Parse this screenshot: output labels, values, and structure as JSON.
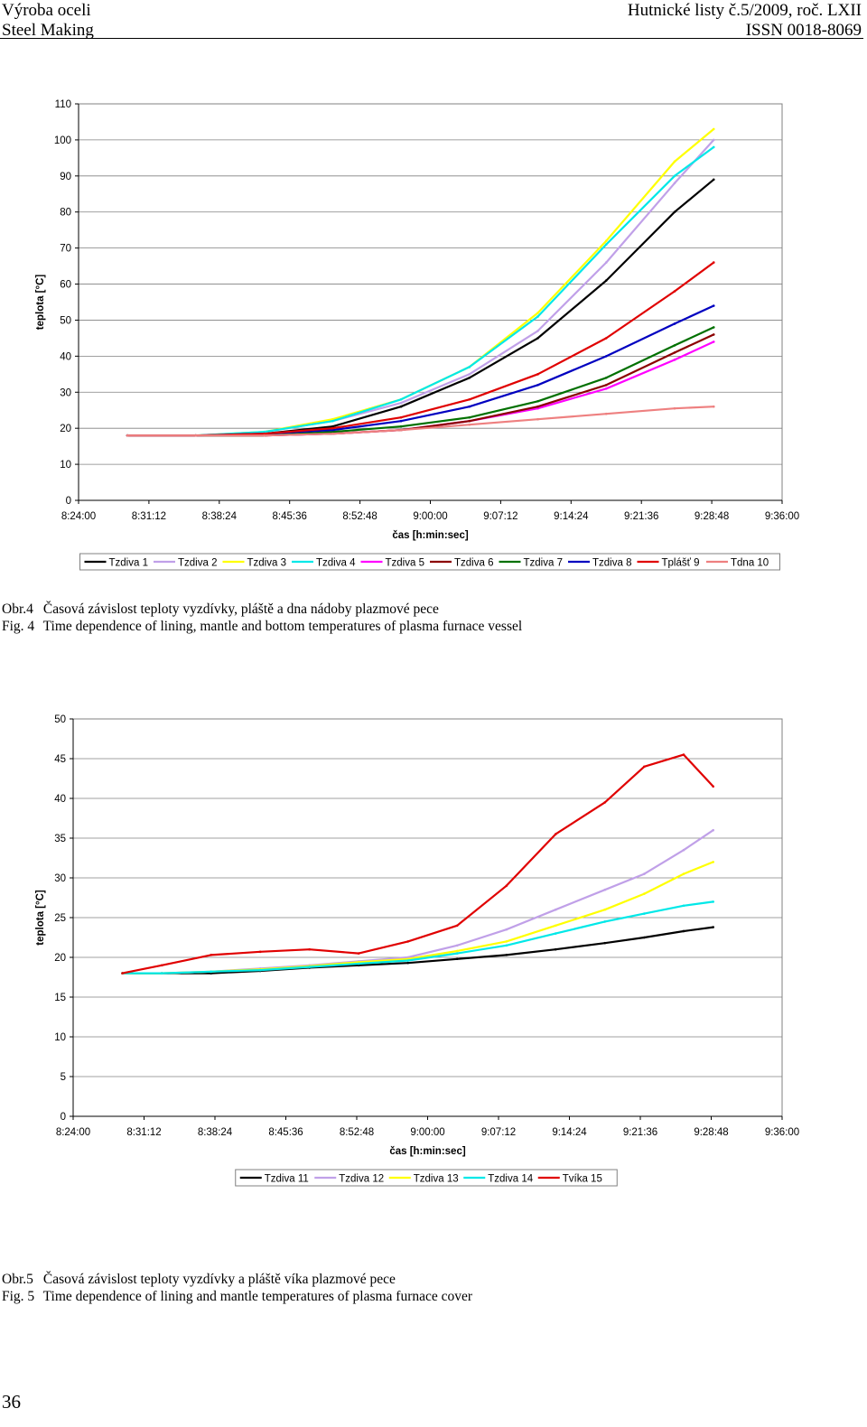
{
  "header": {
    "left_line1": "Výroba oceli",
    "left_line2": "Steel Making",
    "right_line1": "Hutnické listy č.5/2009, roč. LXII",
    "right_line2": "ISSN 0018-8069"
  },
  "captions": {
    "fig4_cz_tag": "Obr.4",
    "fig4_cz_text": "Časová závislost teploty vyzdívky, pláště a dna nádoby plazmové pece",
    "fig4_en_tag": "Fig. 4",
    "fig4_en_text": "Time dependence of lining, mantle and bottom temperatures of plasma furnace vessel",
    "fig5_cz_tag": "Obr.5",
    "fig5_cz_text": "Časová závislost teploty vyzdívky a pláště víka plazmové pece",
    "fig5_en_tag": "Fig. 5",
    "fig5_en_text": "Time dependence of lining and mantle temperatures of plasma furnace cover"
  },
  "page_number": "36",
  "chart_data": [
    {
      "type": "line",
      "title": "",
      "xlabel": "čas [h:min:sec]",
      "ylabel": "teplota [°C]",
      "x_ticks": [
        "8:24:00",
        "8:31:12",
        "8:38:24",
        "8:45:36",
        "8:52:48",
        "9:00:00",
        "9:07:12",
        "9:14:24",
        "9:21:36",
        "9:28:48",
        "9:36:00"
      ],
      "xlim": [
        "8:24:00",
        "9:36:00"
      ],
      "ylim": [
        0,
        110
      ],
      "y_ticks": [
        0,
        10,
        20,
        30,
        40,
        50,
        60,
        70,
        80,
        90,
        100,
        110
      ],
      "grid": true,
      "legend_position": "bottom",
      "x": [
        "8:29:00",
        "8:36:00",
        "8:43:00",
        "8:50:00",
        "8:57:00",
        "9:04:00",
        "9:11:00",
        "9:18:00",
        "9:25:00",
        "9:29:00"
      ],
      "series": [
        {
          "name": "Tzdiva 1",
          "color": "#000000",
          "values": [
            18,
            18,
            18.5,
            20.5,
            26,
            34,
            45,
            61,
            80,
            89
          ]
        },
        {
          "name": "Tzdiva 2",
          "color": "#c0a0e8",
          "values": [
            18,
            18,
            19,
            22,
            27,
            35,
            47,
            66,
            88,
            100
          ]
        },
        {
          "name": "Tzdiva 3",
          "color": "#ffff00",
          "values": [
            18,
            18,
            19,
            22.5,
            28,
            37,
            52,
            72,
            94,
            103
          ]
        },
        {
          "name": "Tzdiva 4",
          "color": "#00e8e8",
          "values": [
            18,
            18,
            19,
            22,
            28,
            37,
            51,
            71,
            90,
            98
          ]
        },
        {
          "name": "Tzdiva 5",
          "color": "#ff00ff",
          "values": [
            18,
            18,
            18,
            18.5,
            19.5,
            22,
            25.5,
            31,
            39,
            44
          ]
        },
        {
          "name": "Tzdiva 6",
          "color": "#8b0000",
          "values": [
            18,
            18,
            18,
            18.5,
            19.5,
            22,
            26,
            32,
            41,
            46
          ]
        },
        {
          "name": "Tzdiva 7",
          "color": "#007000",
          "values": [
            18,
            18,
            18,
            19,
            20.5,
            23,
            27.5,
            34,
            43,
            48
          ]
        },
        {
          "name": "Tzdiva 8",
          "color": "#0000c0",
          "values": [
            18,
            18,
            18.5,
            19.5,
            22,
            26,
            32,
            40,
            49,
            54
          ]
        },
        {
          "name": "Tplášť 9",
          "color": "#e00000",
          "values": [
            18,
            18,
            18.5,
            20,
            23,
            28,
            35,
            45,
            58,
            66
          ]
        },
        {
          "name": "Tdna 10",
          "color": "#ee8080",
          "values": [
            18,
            18,
            18,
            18.5,
            19.5,
            21,
            22.5,
            24,
            25.5,
            26
          ]
        }
      ]
    },
    {
      "type": "line",
      "title": "",
      "xlabel": "čas [h:min:sec]",
      "ylabel": "teplota [°C]",
      "x_ticks": [
        "8:24:00",
        "8:31:12",
        "8:38:24",
        "8:45:36",
        "8:52:48",
        "9:00:00",
        "9:07:12",
        "9:14:24",
        "9:21:36",
        "9:28:48",
        "9:36:00"
      ],
      "xlim": [
        "8:24:00",
        "9:36:00"
      ],
      "ylim": [
        0,
        50
      ],
      "y_ticks": [
        0,
        5,
        10,
        15,
        20,
        25,
        30,
        35,
        40,
        45,
        50
      ],
      "grid": true,
      "legend_position": "bottom",
      "x": [
        "8:29:00",
        "8:33:00",
        "8:38:00",
        "8:43:00",
        "8:48:00",
        "8:53:00",
        "8:58:00",
        "9:03:00",
        "9:08:00",
        "9:13:00",
        "9:18:00",
        "9:22:00",
        "9:26:00",
        "9:29:00"
      ],
      "series": [
        {
          "name": "Tzdiva 11",
          "color": "#000000",
          "values": [
            18,
            18,
            18,
            18.3,
            18.7,
            19,
            19.3,
            19.8,
            20.3,
            21,
            21.8,
            22.5,
            23.3,
            23.8
          ]
        },
        {
          "name": "Tzdiva 12",
          "color": "#c0a0e8",
          "values": [
            18,
            18,
            18.2,
            18.6,
            19,
            19.5,
            20,
            21.5,
            23.5,
            26,
            28.5,
            30.5,
            33.5,
            36
          ]
        },
        {
          "name": "Tzdiva 13",
          "color": "#ffff00",
          "values": [
            18,
            18,
            18.2,
            18.5,
            18.9,
            19.4,
            19.8,
            20.8,
            22,
            24,
            26,
            28,
            30.5,
            32
          ]
        },
        {
          "name": "Tzdiva 14",
          "color": "#00e8e8",
          "values": [
            18,
            18,
            18.2,
            18.4,
            18.8,
            19.2,
            19.6,
            20.5,
            21.5,
            23,
            24.5,
            25.5,
            26.5,
            27
          ]
        },
        {
          "name": "Tvíka 15",
          "color": "#e00000",
          "values": [
            18,
            19,
            20.3,
            20.7,
            21,
            20.5,
            22,
            24,
            29,
            35.5,
            39.5,
            44,
            45.5,
            41.5
          ]
        }
      ]
    }
  ]
}
